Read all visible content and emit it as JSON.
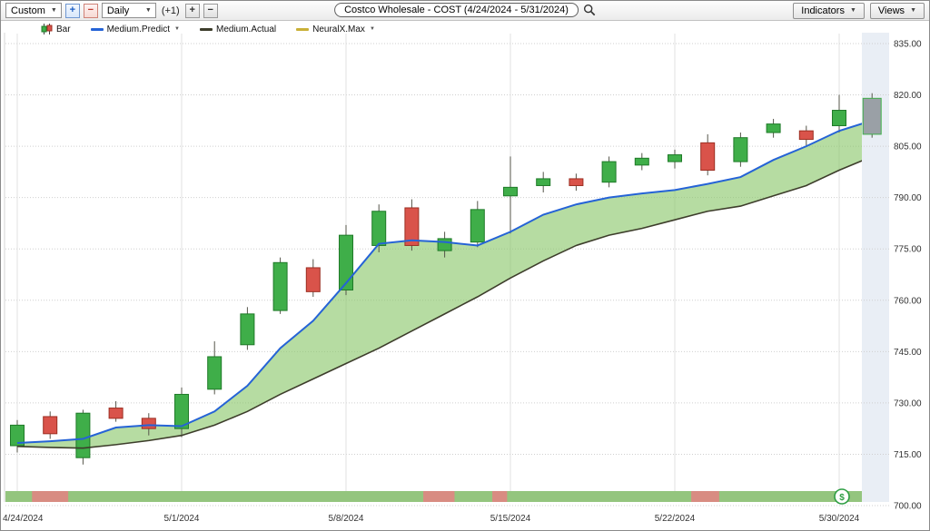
{
  "toolbar": {
    "range_select": "Custom",
    "plus_label": "+",
    "minus_label": "−",
    "interval_select": "Daily",
    "offset_label": "(+1)",
    "title": "Costco Wholesale - COST (4/24/2024 - 5/31/2024)",
    "indicators_button": "Indicators",
    "views_button": "Views"
  },
  "legend": {
    "items": [
      {
        "label": "Bar",
        "swatch": "candles"
      },
      {
        "label": "Medium.Predict",
        "swatch": "line",
        "color": "#2563d6"
      },
      {
        "label": "Medium.Actual",
        "swatch": "line",
        "color": "#3d3d2b"
      },
      {
        "label": "NeuralX.Max",
        "swatch": "line",
        "color": "#c9b037"
      }
    ]
  },
  "chart_data": {
    "type": "candlestick",
    "company": "Costco Wholesale",
    "symbol": "COST",
    "date_range": "4/24/2024 - 5/31/2024",
    "interval": "Daily",
    "y_axis": {
      "min": 700,
      "max": 835,
      "step": 15,
      "labels": [
        "835.00",
        "820.00",
        "805.00",
        "790.00",
        "775.00",
        "760.00",
        "745.00",
        "730.00",
        "715.00",
        "700.00"
      ]
    },
    "x_axis": {
      "tick_labels": [
        "4/24/2024",
        "5/1/2024",
        "5/8/2024",
        "5/15/2024",
        "5/22/2024",
        "5/30/2024"
      ],
      "tick_indices": [
        0,
        5,
        10,
        15,
        20,
        25
      ]
    },
    "dates": [
      "4/24",
      "4/25",
      "4/26",
      "4/29",
      "4/30",
      "5/1",
      "5/2",
      "5/3",
      "5/6",
      "5/7",
      "5/8",
      "5/9",
      "5/10",
      "5/13",
      "5/14",
      "5/15",
      "5/16",
      "5/17",
      "5/20",
      "5/21",
      "5/22",
      "5/23",
      "5/24",
      "5/28",
      "5/29",
      "5/30",
      "5/31"
    ],
    "candles": [
      {
        "o": 717.5,
        "h": 725.0,
        "l": 715.5,
        "c": 723.5,
        "dir": "up"
      },
      {
        "o": 726.0,
        "h": 727.5,
        "l": 719.5,
        "c": 721.0,
        "dir": "down"
      },
      {
        "o": 714.0,
        "h": 728.0,
        "l": 712.0,
        "c": 727.0,
        "dir": "up"
      },
      {
        "o": 728.5,
        "h": 730.5,
        "l": 724.5,
        "c": 725.5,
        "dir": "down"
      },
      {
        "o": 725.5,
        "h": 727.0,
        "l": 720.5,
        "c": 722.5,
        "dir": "down"
      },
      {
        "o": 722.5,
        "h": 734.5,
        "l": 720.0,
        "c": 732.5,
        "dir": "up"
      },
      {
        "o": 734.0,
        "h": 748.0,
        "l": 732.5,
        "c": 743.5,
        "dir": "up"
      },
      {
        "o": 747.0,
        "h": 758.0,
        "l": 745.5,
        "c": 756.0,
        "dir": "up"
      },
      {
        "o": 757.0,
        "h": 772.5,
        "l": 756.0,
        "c": 771.0,
        "dir": "up"
      },
      {
        "o": 769.5,
        "h": 772.0,
        "l": 761.0,
        "c": 762.5,
        "dir": "down"
      },
      {
        "o": 763.0,
        "h": 782.0,
        "l": 761.5,
        "c": 779.0,
        "dir": "up"
      },
      {
        "o": 776.0,
        "h": 788.0,
        "l": 774.0,
        "c": 786.0,
        "dir": "up"
      },
      {
        "o": 787.0,
        "h": 789.5,
        "l": 774.5,
        "c": 776.0,
        "dir": "down"
      },
      {
        "o": 774.5,
        "h": 780.0,
        "l": 772.5,
        "c": 778.0,
        "dir": "up"
      },
      {
        "o": 777.0,
        "h": 789.0,
        "l": 775.5,
        "c": 786.5,
        "dir": "up"
      },
      {
        "o": 790.5,
        "h": 802.0,
        "l": 779.5,
        "c": 793.0,
        "dir": "up"
      },
      {
        "o": 793.5,
        "h": 797.5,
        "l": 791.5,
        "c": 795.5,
        "dir": "up"
      },
      {
        "o": 795.5,
        "h": 797.0,
        "l": 792.0,
        "c": 793.5,
        "dir": "down"
      },
      {
        "o": 794.5,
        "h": 802.0,
        "l": 793.0,
        "c": 800.5,
        "dir": "up"
      },
      {
        "o": 799.5,
        "h": 803.0,
        "l": 798.0,
        "c": 801.5,
        "dir": "up"
      },
      {
        "o": 800.5,
        "h": 804.0,
        "l": 798.5,
        "c": 802.5,
        "dir": "up"
      },
      {
        "o": 806.0,
        "h": 808.5,
        "l": 796.5,
        "c": 798.0,
        "dir": "down"
      },
      {
        "o": 800.5,
        "h": 809.0,
        "l": 799.0,
        "c": 807.5,
        "dir": "up"
      },
      {
        "o": 809.0,
        "h": 813.0,
        "l": 807.5,
        "c": 811.5,
        "dir": "up"
      },
      {
        "o": 809.5,
        "h": 811.0,
        "l": 805.0,
        "c": 807.0,
        "dir": "down"
      },
      {
        "o": 811.0,
        "h": 820.0,
        "l": 809.0,
        "c": 815.5,
        "dir": "up"
      },
      {
        "o": 808.5,
        "h": 820.5,
        "l": 807.5,
        "c": 819.0,
        "dir": "forming"
      }
    ],
    "series": [
      {
        "name": "Medium.Predict",
        "color": "#2563d6",
        "values": [
          718.3,
          718.8,
          719.5,
          722.8,
          723.5,
          723.2,
          727.5,
          735,
          746,
          754,
          765,
          776.5,
          777.5,
          777,
          776,
          780,
          785,
          788,
          790,
          791.2,
          792.2,
          794,
          796,
          801,
          805,
          809.5,
          812.5
        ]
      },
      {
        "name": "Medium.Actual",
        "color": "#3d3d2b",
        "values": [
          717.3,
          717,
          716.8,
          717.8,
          719,
          720.5,
          723.5,
          727.5,
          732.5,
          737,
          741.5,
          746,
          751,
          756,
          761,
          766.5,
          771.5,
          776,
          779,
          781,
          783.5,
          786,
          787.5,
          790.5,
          793.5,
          798,
          802
        ]
      }
    ],
    "band": {
      "upper": "Medium.Predict",
      "lower": "Medium.Actual",
      "color": "#86c564",
      "opacity": 0.6
    },
    "signal_strip": {
      "color_ok": "#94c57e",
      "color_alert": "#d88c82",
      "badge": "$",
      "badge_color": "#2f9e44",
      "alert_segments": [
        [
          0.45,
          1.55
        ],
        [
          12.35,
          13.3
        ],
        [
          14.45,
          14.9
        ],
        [
          20.5,
          21.35
        ]
      ]
    },
    "colors": {
      "up": "#3fae49",
      "up_border": "#1f7a28",
      "down": "#d9534a",
      "down_border": "#9c2f22",
      "forming": "#9aa0a6",
      "wick": "#55554a",
      "grid": "#cfcfcf",
      "vgrid": "#e2e2e2",
      "future_panel": "#e9eef5",
      "axis_text": "#333333"
    }
  }
}
